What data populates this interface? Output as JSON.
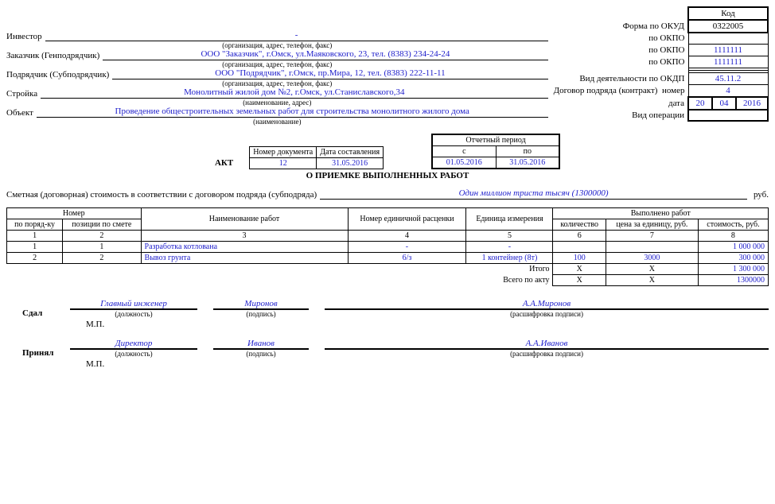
{
  "header": {
    "code_label": "Код",
    "okud_label": "Форма по ОКУД",
    "okud_code": "0322005",
    "okpo_label": "по ОКПО",
    "okdp_label": "Вид деятельности по ОКДП",
    "okdp_code": "45.11.2",
    "contract_label": "Договор подряда (контракт)",
    "contract_num_label": "номер",
    "contract_num": "4",
    "contract_date_label": "дата",
    "contract_date_d": "20",
    "contract_date_m": "04",
    "contract_date_y": "2016",
    "operation_label": "Вид операции"
  },
  "parties": {
    "investor_label": "Инвестор",
    "investor_val": "-",
    "investor_sub": "(организация, адрес, телефон, факс)",
    "customer_label": "Заказчик (Генподрядчик)",
    "customer_val": "ООО \"Заказчик\", г.Омск, ул.Маяковского, 23, тел. (8383) 234-24-24",
    "customer_sub": "(организация, адрес, телефон, факс)",
    "customer_okpo": "1111111",
    "contractor_label": "Подрядчик (Субподрядчик)",
    "contractor_val": "ООО \"Подрядчик\", г.Омск, пр.Мира, 12, тел. (8383) 222-11-11",
    "contractor_sub": "(организация, адрес, телефон, факс)",
    "contractor_okpo": "1111111",
    "project_label": "Стройка",
    "project_val": "Монолитный жилой дом №2, г.Омск, ул.Станиславского,34",
    "project_sub": "(наименование, адрес)",
    "object_label": "Объект",
    "object_val": "Проведение общестроительных земельных работ для строительства монолитного жилого дома",
    "object_sub": "(наименование)"
  },
  "doc": {
    "num_label": "Номер документа",
    "date_label": "Дата составления",
    "num": "12",
    "date": "31.05.2016",
    "title1": "АКТ",
    "title2": "О ПРИЕМКЕ ВЫПОЛНЕННЫХ РАБОТ",
    "period_label": "Отчетный период",
    "from_label": "с",
    "to_label": "по",
    "from": "01.05.2016",
    "to": "31.05.2016"
  },
  "estimate": {
    "text": "Сметная (договорная) стоимость в соответствии с договором подряда (субподряда)",
    "value": "Один миллион триста тысяч (1300000)",
    "rub": "руб."
  },
  "table": {
    "hdr_num": "Номер",
    "hdr_order": "по поряд-ку",
    "hdr_pos": "позиции по смете",
    "hdr_name": "Наименование работ",
    "hdr_unit_num": "Номер единичной расценки",
    "hdr_unit": "Единица измерения",
    "hdr_done": "Выполнено работ",
    "hdr_qty": "количество",
    "hdr_price": "цена за единицу, руб.",
    "hdr_cost": "стоимость, руб.",
    "c1": "1",
    "c2": "2",
    "c3": "3",
    "c4": "4",
    "c5": "5",
    "c6": "6",
    "c7": "7",
    "c8": "8",
    "rows": [
      {
        "n": "1",
        "pos": "1",
        "name": "Разработка котлована",
        "unum": "-",
        "unit": "-",
        "qty": "",
        "price": "",
        "cost": "1 000 000"
      },
      {
        "n": "2",
        "pos": "2",
        "name": "Вывоз грунта",
        "unum": "6/з",
        "unit": "1 контейнер (8т)",
        "qty": "100",
        "price": "3000",
        "cost": "300 000"
      }
    ],
    "total_label": "Итого",
    "total_x1": "X",
    "total_x2": "X",
    "total_val": "1 300 000",
    "act_label": "Всего по акту",
    "act_x1": "X",
    "act_x2": "X",
    "act_val": "1300000"
  },
  "sign": {
    "gave_label": "Сдал",
    "gave_pos": "Главный инженер",
    "gave_sign": "Миронов",
    "gave_name": "А.А.Миронов",
    "took_label": "Принял",
    "took_pos": "Директор",
    "took_sign": "Иванов",
    "took_name": "А.А.Иванов",
    "pos_sub": "(должность)",
    "sign_sub": "(подпись)",
    "name_sub": "(расшифровка подписи)",
    "mp": "М.П."
  }
}
